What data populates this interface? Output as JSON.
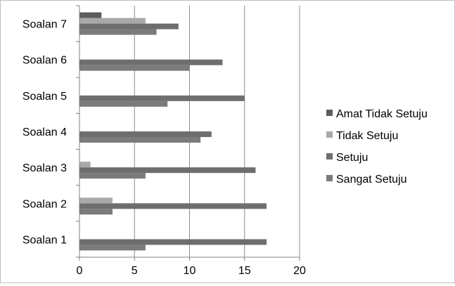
{
  "chart_data": {
    "type": "bar",
    "orientation": "horizontal",
    "categories": [
      "Soalan 1",
      "Soalan 2",
      "Soalan 3",
      "Soalan 4",
      "Soalan 5",
      "Soalan 6",
      "Soalan 7"
    ],
    "series": [
      {
        "name": "Sangat Setuju",
        "values": [
          6,
          3,
          6,
          11,
          8,
          10,
          7
        ],
        "color": "#7b7b7b"
      },
      {
        "name": "Setuju",
        "values": [
          17,
          17,
          16,
          12,
          15,
          13,
          9
        ],
        "color": "#6e6e6e"
      },
      {
        "name": "Tidak Setuju",
        "values": [
          0,
          3,
          1,
          0,
          0,
          0,
          6
        ],
        "color": "#a9a9a9"
      },
      {
        "name": "Amat Tidak Setuju",
        "values": [
          0,
          0,
          0,
          0,
          0,
          0,
          2
        ],
        "color": "#5c5c5c"
      }
    ],
    "xlim": [
      0,
      20
    ],
    "xticks": [
      0,
      5,
      10,
      15,
      20
    ],
    "xlabel": "",
    "ylabel": "",
    "title": "",
    "grid": "vertical",
    "legend_position": "right",
    "legend_order": [
      "Amat Tidak Setuju",
      "Tidak Setuju",
      "Setuju",
      "Sangat Setuju"
    ]
  }
}
